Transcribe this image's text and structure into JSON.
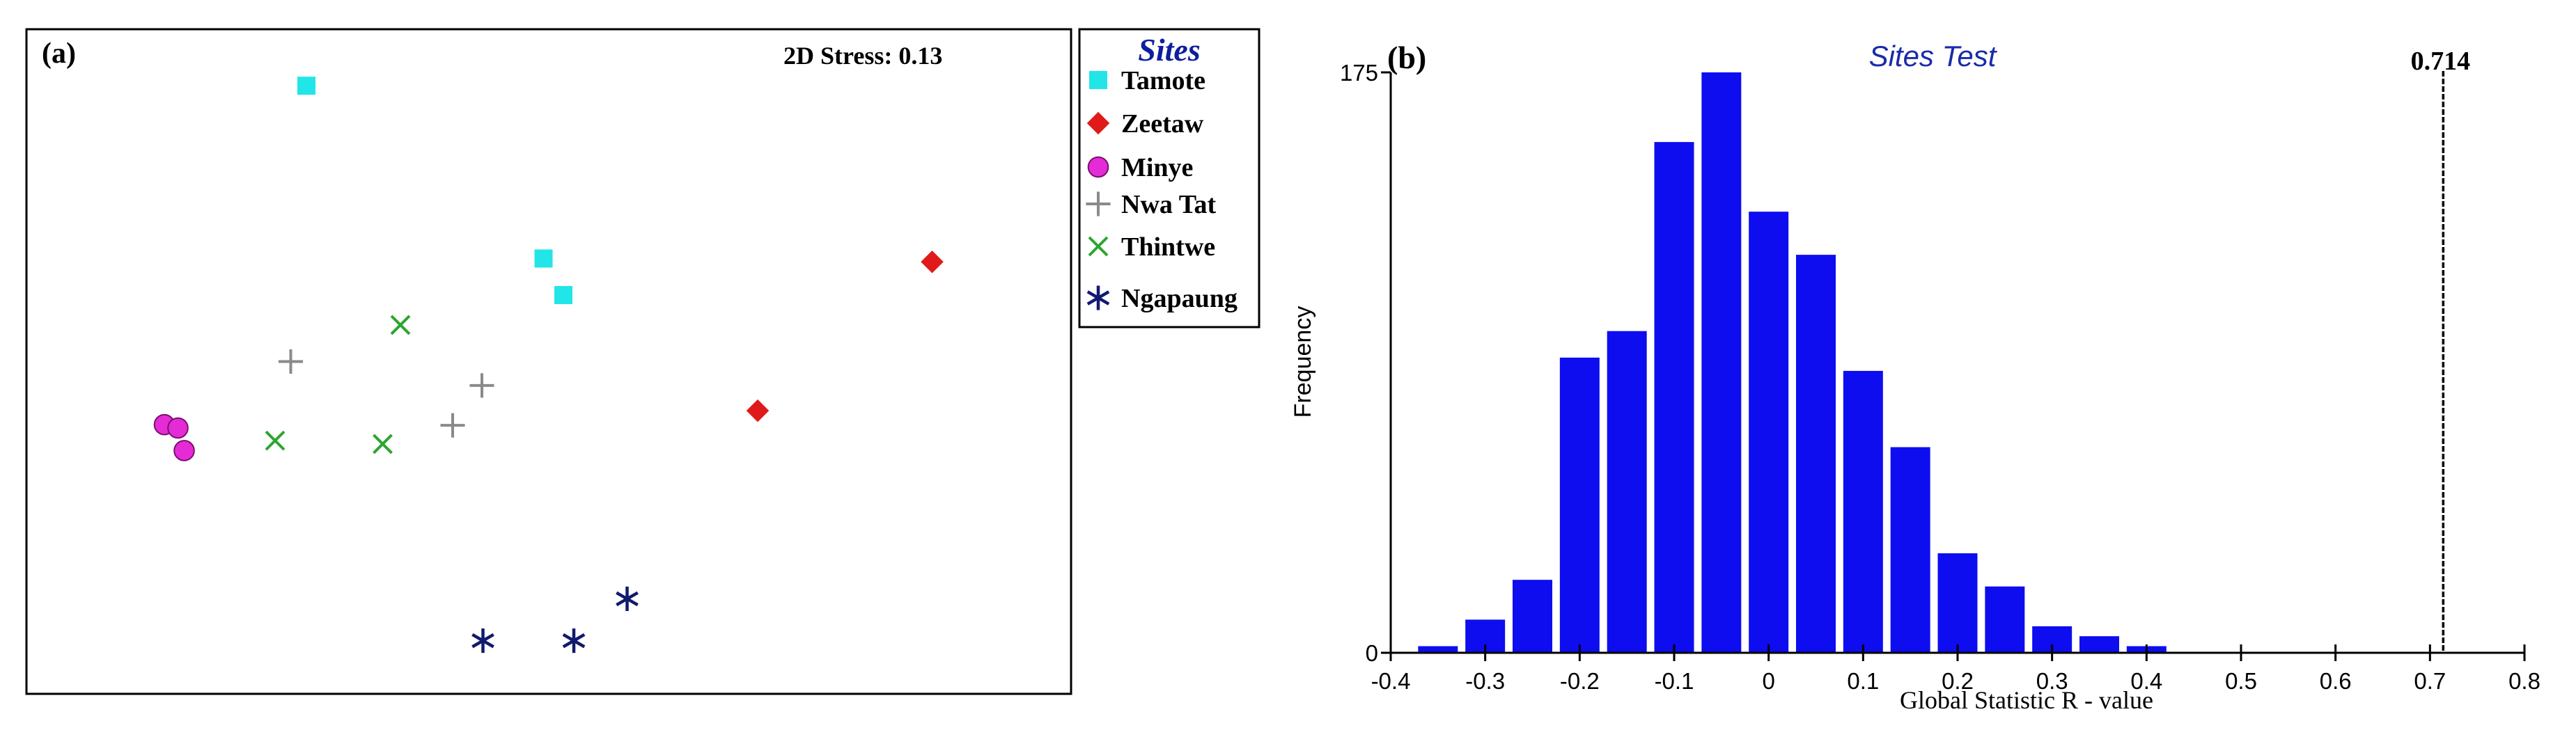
{
  "chart_data": [
    {
      "panel_label": "(a)",
      "type": "scatter",
      "annotation": "2D Stress: 0.13",
      "legend": {
        "title": "Sites",
        "placement": "right",
        "entries": [
          {
            "name": "Tamote",
            "marker": "square",
            "color": "#22E5E8"
          },
          {
            "name": "Zeetaw",
            "marker": "diamond",
            "color": "#E01A1A"
          },
          {
            "name": "Minye",
            "marker": "circle",
            "color": "#E52BD6"
          },
          {
            "name": "Nwa Tat",
            "marker": "plus",
            "color": "#8A8A8A"
          },
          {
            "name": "Thintwe",
            "marker": "cross",
            "color": "#2EA52E"
          },
          {
            "name": "Ngapaung",
            "marker": "asterisk",
            "color": "#101A6E"
          }
        ]
      },
      "xlim": [
        0,
        1
      ],
      "ylim": [
        0,
        1
      ],
      "series": [
        {
          "name": "Tamote",
          "points": [
            [
              0.268,
              0.915
            ],
            [
              0.495,
              0.655
            ],
            [
              0.514,
              0.6
            ]
          ]
        },
        {
          "name": "Zeetaw",
          "points": [
            [
              0.867,
              0.65
            ],
            [
              0.7,
              0.426
            ]
          ]
        },
        {
          "name": "Minye",
          "points": [
            [
              0.132,
              0.405
            ],
            [
              0.145,
              0.4
            ],
            [
              0.151,
              0.366
            ]
          ]
        },
        {
          "name": "Nwa Tat",
          "points": [
            [
              0.253,
              0.5
            ],
            [
              0.436,
              0.464
            ],
            [
              0.408,
              0.404
            ]
          ]
        },
        {
          "name": "Thintwe",
          "points": [
            [
              0.358,
              0.555
            ],
            [
              0.238,
              0.381
            ],
            [
              0.341,
              0.376
            ]
          ]
        },
        {
          "name": "Ngapaung",
          "points": [
            [
              0.437,
              0.08
            ],
            [
              0.524,
              0.08
            ],
            [
              0.575,
              0.143
            ]
          ]
        }
      ]
    },
    {
      "panel_label": "(b)",
      "type": "bar",
      "title": "Sites Test",
      "xlabel": "Global Statistic R - value",
      "ylabel": "Frequency",
      "xlim": [
        -0.4,
        0.8
      ],
      "ylim": [
        0,
        175
      ],
      "xticks": [
        "-0.4",
        "-0.3",
        "-0.2",
        "-0.1",
        "0",
        "0.1",
        "0.2",
        "0.3",
        "0.4",
        "0.5",
        "0.6",
        "0.7",
        "0.8"
      ],
      "yticks": [
        "0",
        "175"
      ],
      "bar_width": 0.042,
      "bars": [
        {
          "x": -0.35,
          "value": 2
        },
        {
          "x": -0.3,
          "value": 10
        },
        {
          "x": -0.25,
          "value": 22
        },
        {
          "x": -0.2,
          "value": 89
        },
        {
          "x": -0.15,
          "value": 97
        },
        {
          "x": -0.1,
          "value": 154
        },
        {
          "x": -0.05,
          "value": 175
        },
        {
          "x": 0.0,
          "value": 133
        },
        {
          "x": 0.05,
          "value": 120
        },
        {
          "x": 0.1,
          "value": 85
        },
        {
          "x": 0.15,
          "value": 62
        },
        {
          "x": 0.2,
          "value": 30
        },
        {
          "x": 0.25,
          "value": 20
        },
        {
          "x": 0.3,
          "value": 8
        },
        {
          "x": 0.35,
          "value": 5
        },
        {
          "x": 0.4,
          "value": 2
        }
      ],
      "bar_color": "#0D0DF0",
      "reference_line": {
        "x": 0.714,
        "label": "0.714"
      }
    }
  ]
}
